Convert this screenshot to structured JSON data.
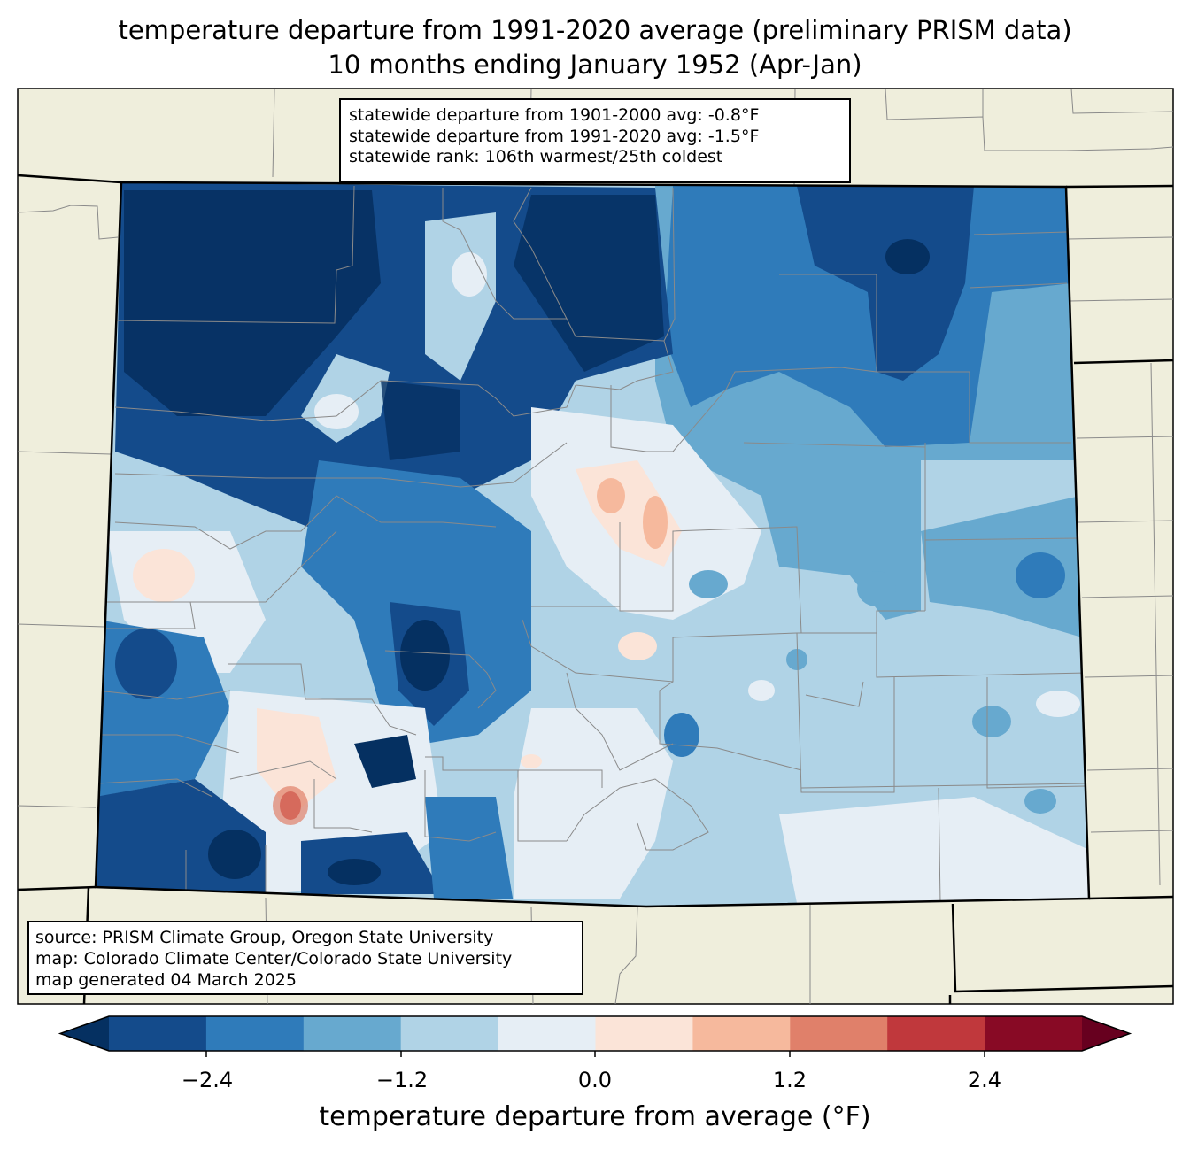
{
  "title_line1": "temperature departure from 1991-2020 average (preliminary PRISM data)",
  "title_line2": "10 months ending January 1952 (Apr-Jan)",
  "stats": {
    "line1": "statewide departure from 1901-2000 avg: -0.8°F",
    "line2": "statewide departure from 1991-2020 avg: -1.5°F",
    "line3": "statewide rank: 106th warmest/25th coldest"
  },
  "source": {
    "line1": "source: PRISM Climate Group, Oregon State University",
    "line2": "map: Colorado Climate Center/Colorado State University",
    "line3": "map generated 04 March 2025"
  },
  "colorbar": {
    "label": "temperature departure from average (°F)",
    "ticks": [
      "−2.4",
      "−1.2",
      "0.0",
      "1.2",
      "2.4"
    ],
    "colors": [
      "#053061",
      "#144b8b",
      "#2f7bba",
      "#67a9cf",
      "#b0d3e6",
      "#e6eef5",
      "#fbe4d8",
      "#f6b99d",
      "#e0806a",
      "#c0383c",
      "#880a25",
      "#67001f"
    ]
  }
}
